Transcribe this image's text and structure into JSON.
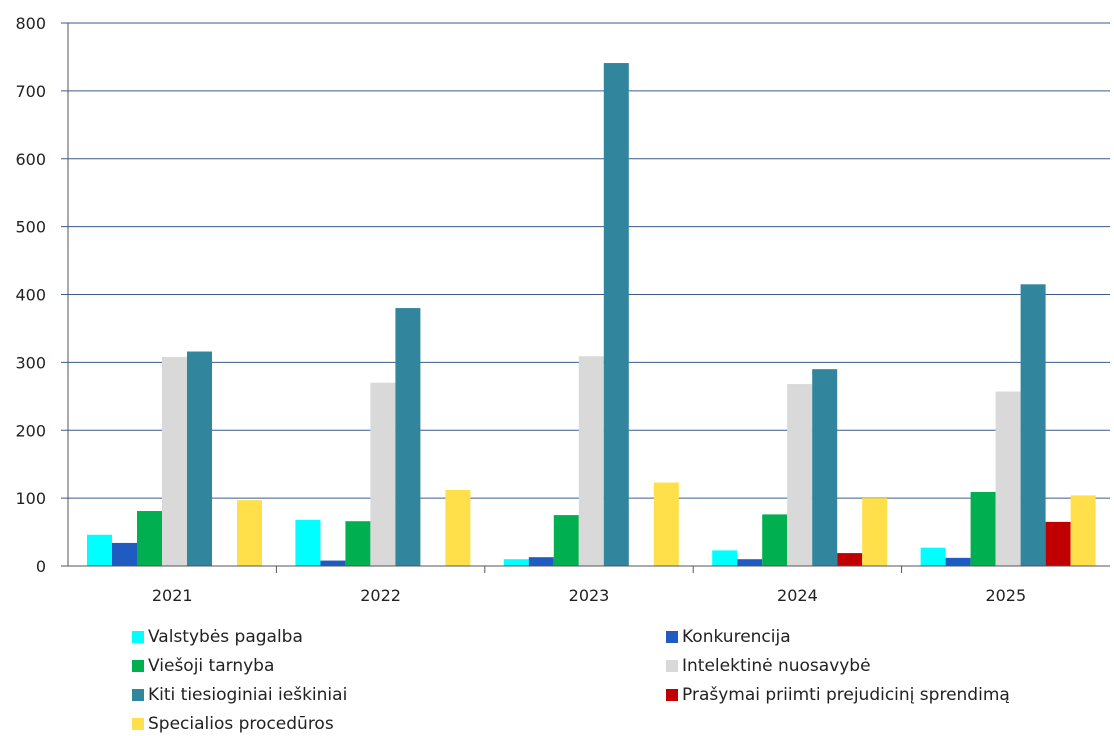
{
  "chart_data": {
    "type": "bar",
    "categories": [
      "2021",
      "2022",
      "2023",
      "2024",
      "2025"
    ],
    "ylim": [
      0,
      800
    ],
    "yticks": [
      0,
      100,
      200,
      300,
      400,
      500,
      600,
      700,
      800
    ],
    "grid": true,
    "legend_position": "bottom",
    "series": [
      {
        "name": "Valstybės pagalba",
        "color": "#00FFFF",
        "values": [
          46,
          68,
          10,
          23,
          27
        ]
      },
      {
        "name": "Konkurencija",
        "color": "#1F5BC0",
        "values": [
          34,
          8,
          13,
          10,
          12
        ]
      },
      {
        "name": "Viešoji tarnyba",
        "color": "#00B050",
        "values": [
          81,
          66,
          75,
          76,
          109
        ]
      },
      {
        "name": "Intelektinė nuosavybė",
        "color": "#D9D9D9",
        "values": [
          308,
          270,
          309,
          268,
          257
        ]
      },
      {
        "name": "Kiti tiesioginiai ieškiniai",
        "color": "#31859C",
        "values": [
          316,
          380,
          741,
          290,
          415
        ]
      },
      {
        "name": "Prašymai priimti prejudicinį sprendimą",
        "color": "#C00000",
        "values": [
          0,
          0,
          0,
          19,
          65
        ]
      },
      {
        "name": "Specialios procedūros",
        "color": "#FFE04A",
        "values": [
          97,
          112,
          123,
          100,
          104
        ]
      }
    ]
  }
}
